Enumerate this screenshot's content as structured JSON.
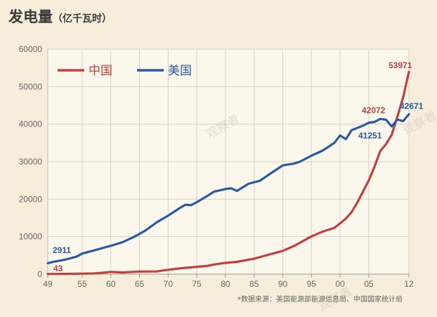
{
  "chart_data": {
    "type": "line",
    "title": "发电量",
    "unit": "（亿千瓦时）",
    "source": "*数据来源：美国能源部能源信息局、中国国家统计局",
    "watermark": "观察者",
    "ylim": [
      0,
      60000
    ],
    "yticks": [
      0,
      10000,
      20000,
      30000,
      40000,
      50000,
      60000
    ],
    "xlim": [
      1949,
      2012
    ],
    "xtick_values": [
      1949,
      1955,
      1960,
      1965,
      1970,
      1975,
      1980,
      1985,
      1990,
      1995,
      2000,
      2005,
      2012
    ],
    "xtick_labels": [
      "49",
      "55",
      "60",
      "65",
      "70",
      "75",
      "80",
      "85",
      "90",
      "95",
      "00",
      "05",
      "12"
    ],
    "grid": true,
    "legend_position": "top-left",
    "series": [
      {
        "name": "中国",
        "color": "#c0413f",
        "x": [
          1949,
          1952,
          1955,
          1957,
          1958,
          1960,
          1962,
          1965,
          1968,
          1970,
          1972,
          1975,
          1977,
          1978,
          1980,
          1982,
          1985,
          1987,
          1990,
          1992,
          1995,
          1997,
          1999,
          2000,
          2001,
          2002,
          2003,
          2004,
          2005,
          2006,
          2007,
          2008,
          2009,
          2010,
          2011,
          2012
        ],
        "y": [
          43,
          73,
          123,
          193,
          275,
          594,
          458,
          676,
          716,
          1159,
          1524,
          1958,
          2234,
          2566,
          3006,
          3277,
          4107,
          4973,
          6213,
          7539,
          10070,
          11356,
          12331,
          13556,
          14808,
          16540,
          19106,
          22033,
          25003,
          28657,
          32816,
          34669,
          37147,
          42072,
          47130,
          53971
        ]
      },
      {
        "name": "美国",
        "color": "#2a5aa1",
        "x": [
          1949,
          1950,
          1952,
          1954,
          1955,
          1957,
          1960,
          1962,
          1964,
          1966,
          1968,
          1970,
          1972,
          1973,
          1974,
          1975,
          1977,
          1978,
          1980,
          1981,
          1982,
          1984,
          1986,
          1988,
          1990,
          1992,
          1993,
          1995,
          1997,
          1999,
          2000,
          2001,
          2002,
          2004,
          2005,
          2006,
          2007,
          2008,
          2009,
          2010,
          2011,
          2012
        ],
        "y": [
          2911,
          3300,
          3850,
          4650,
          5500,
          6300,
          7550,
          8500,
          9900,
          11600,
          13800,
          15600,
          17600,
          18500,
          18400,
          19200,
          21000,
          22000,
          22700,
          22900,
          22200,
          24100,
          24900,
          27000,
          29000,
          29500,
          30000,
          31600,
          33000,
          35000,
          37000,
          36000,
          38400,
          39600,
          40400,
          40600,
          41400,
          41200,
          39400,
          41251,
          40800,
          42671
        ]
      }
    ],
    "annotations": [
      {
        "text": "2911",
        "series": "美国"
      },
      {
        "text": "43",
        "series": "中国"
      },
      {
        "text": "53971",
        "series": "中国"
      },
      {
        "text": "42072",
        "series": "中国"
      },
      {
        "text": "41251",
        "series": "美国"
      },
      {
        "text": "42671",
        "series": "美国"
      }
    ]
  }
}
